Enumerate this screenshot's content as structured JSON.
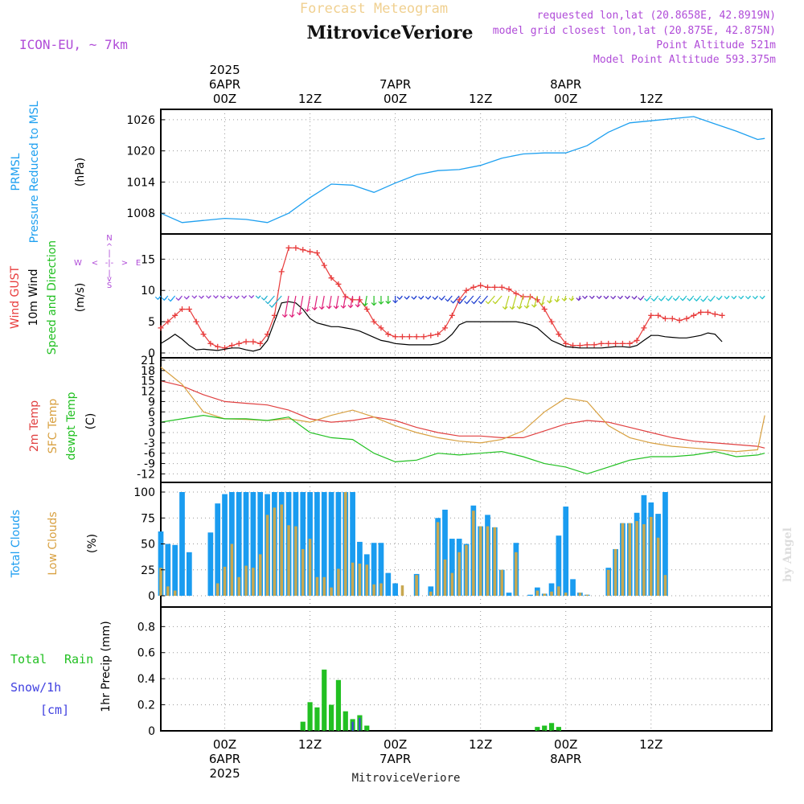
{
  "header": {
    "forecast_label": "Forecast Meteogram",
    "title": "MitroviceVeriore",
    "model": "ICON-EU, ~ 7km",
    "requested": "requested lon,lat (20.8658E, 42.8919N)",
    "closest": "model grid closest lon,lat (20.875E, 42.875N)",
    "point_altitude": "Point Altitude 521m",
    "model_altitude": "Model Point Altitude 593.375m",
    "footer_title": "MitroviceVeriore",
    "credit": "by Angel"
  },
  "colors": {
    "pressure": "#1ea0f0",
    "gust": "#e83c3c",
    "wind": "#000000",
    "arrow_green": "#22c022",
    "temp": "#e04040",
    "sfc": "#d8a040",
    "dew": "#22c022",
    "total_cloud": "#1a9cf0",
    "low_cloud": "#c8a850",
    "rain": "#22c022",
    "snow": "#4040e0",
    "purple": "#b04cd8",
    "forecast": "#f0d090"
  },
  "panel_labels": {
    "pressure": [
      "PRMSL",
      "Pressure Reduced to MSL",
      "(hPa)"
    ],
    "wind": [
      "Wind GUST",
      "10m Wind",
      "Speed and Direction",
      "(m/s)"
    ],
    "compass": {
      "n": "N",
      "s": "S",
      "w": "W",
      "e": "E"
    },
    "temp": [
      "2m Temp",
      "SFC Temp",
      "dewpt Temp",
      "(C)"
    ],
    "cloud": [
      "Total Clouds",
      "Low Clouds",
      "(%)"
    ],
    "precip": [
      "Total",
      "Rain",
      "Snow/1h",
      "[cm]",
      "1hr Precip (mm)"
    ]
  },
  "time_axis": {
    "top": [
      {
        "lines": [
          "2025",
          "6APR",
          "00Z"
        ],
        "i": 9
      },
      {
        "lines": [
          "12Z"
        ],
        "i": 21
      },
      {
        "lines": [
          "7APR",
          "00Z"
        ],
        "i": 33
      },
      {
        "lines": [
          "12Z"
        ],
        "i": 45
      },
      {
        "lines": [
          "8APR",
          "00Z"
        ],
        "i": 57
      },
      {
        "lines": [
          "12Z"
        ],
        "i": 69
      }
    ],
    "bottom": [
      {
        "lines": [
          "00Z",
          "6APR",
          "2025"
        ],
        "i": 9
      },
      {
        "lines": [
          "12Z"
        ],
        "i": 21
      },
      {
        "lines": [
          "00Z",
          "7APR"
        ],
        "i": 33
      },
      {
        "lines": [
          "12Z"
        ],
        "i": 45
      },
      {
        "lines": [
          "00Z",
          "8APR"
        ],
        "i": 57
      },
      {
        "lines": [
          "12Z"
        ],
        "i": 69
      }
    ]
  },
  "chart_data": [
    {
      "type": "line",
      "title": "PRMSL Pressure Reduced to MSL",
      "ylabel": "(hPa)",
      "ylim": [
        1004,
        1028
      ],
      "yticks": [
        1008,
        1014,
        1020,
        1026
      ],
      "x_hours": [
        -9,
        -6,
        -3,
        0,
        3,
        6,
        9,
        12,
        15,
        18,
        21,
        24,
        27,
        30,
        33,
        36,
        39,
        42,
        45,
        48,
        51,
        54,
        57,
        60,
        63,
        66,
        69,
        72,
        75,
        76
      ],
      "series": [
        {
          "name": "PRMSL",
          "values": [
            1008.0,
            1006.2,
            1006.6,
            1007.0,
            1006.8,
            1006.2,
            1008.0,
            1011.0,
            1013.6,
            1013.4,
            1012.0,
            1013.8,
            1015.4,
            1016.2,
            1016.4,
            1017.2,
            1018.6,
            1019.4,
            1019.6,
            1019.6,
            1021.0,
            1023.6,
            1025.4,
            1025.8,
            1026.2,
            1026.6,
            1025.2,
            1023.8,
            1022.2,
            1022.4
          ]
        }
      ]
    },
    {
      "type": "line",
      "title": "Wind GUST / 10m Wind Speed and Direction",
      "ylabel": "(m/s)",
      "ylim": [
        0,
        18
      ],
      "yticks": [
        0,
        5,
        10,
        15
      ],
      "x_hours": [
        -9,
        -8,
        -7,
        -6,
        -5,
        -4,
        -3,
        -2,
        -1,
        0,
        1,
        2,
        3,
        4,
        5,
        6,
        7,
        8,
        9,
        10,
        11,
        12,
        13,
        14,
        15,
        16,
        17,
        18,
        19,
        20,
        21,
        22,
        23,
        24,
        25,
        26,
        27,
        28,
        29,
        30,
        31,
        32,
        33,
        34,
        35,
        36,
        37,
        38,
        39,
        40,
        41,
        42,
        43,
        44,
        45,
        46,
        47,
        48,
        49,
        50,
        51,
        52,
        53,
        54,
        55,
        56,
        57,
        58,
        59,
        60,
        61,
        62,
        63,
        64,
        65,
        66,
        67,
        68,
        69,
        70,
        71,
        72,
        73,
        74,
        75,
        76
      ],
      "series": [
        {
          "name": "Wind GUST",
          "values": [
            4.0,
            5.0,
            6.0,
            7.0,
            7.0,
            5.0,
            3.0,
            1.5,
            1.0,
            0.8,
            1.2,
            1.5,
            1.8,
            1.8,
            1.5,
            3.0,
            6.0,
            13.0,
            16.8,
            16.8,
            16.5,
            16.2,
            16.0,
            14.0,
            12.0,
            11.0,
            9.0,
            8.5,
            8.5,
            7.0,
            5.0,
            4.0,
            3.0,
            2.6,
            2.6,
            2.6,
            2.6,
            2.6,
            2.8,
            3.0,
            4.0,
            6.0,
            8.5,
            10.0,
            10.5,
            10.8,
            10.5,
            10.5,
            10.5,
            10.2,
            9.5,
            9.0,
            9.0,
            8.5,
            7.0,
            5.0,
            3.0,
            1.5,
            1.2,
            1.2,
            1.3,
            1.3,
            1.5,
            1.5,
            1.5,
            1.5,
            1.5,
            2.0,
            4.0,
            6.0,
            6.0,
            5.5,
            5.5,
            5.2,
            5.5,
            6.0,
            6.5,
            6.5,
            6.2,
            6.0
          ]
        },
        {
          "name": "10m Wind",
          "values": [
            1.5,
            2.2,
            3.0,
            2.2,
            1.2,
            0.5,
            0.6,
            0.5,
            0.4,
            0.6,
            0.8,
            0.8,
            0.5,
            0.3,
            0.6,
            2.0,
            5.0,
            8.0,
            8.2,
            8.0,
            7.0,
            5.5,
            4.8,
            4.5,
            4.2,
            4.2,
            4.0,
            3.8,
            3.5,
            3.0,
            2.5,
            2.0,
            1.8,
            1.5,
            1.4,
            1.3,
            1.3,
            1.3,
            1.3,
            1.5,
            2.0,
            3.0,
            4.5,
            5.0,
            5.0,
            5.0,
            5.0,
            5.0,
            5.0,
            5.0,
            5.0,
            4.8,
            4.5,
            4.0,
            3.0,
            2.0,
            1.5,
            1.0,
            0.9,
            0.8,
            0.8,
            0.8,
            0.8,
            0.9,
            1.0,
            1.0,
            0.9,
            1.2,
            2.0,
            2.8,
            2.8,
            2.6,
            2.5,
            2.4,
            2.4,
            2.6,
            2.8,
            3.2,
            3.0,
            1.8
          ]
        }
      ]
    },
    {
      "type": "line",
      "title": "2m Temp / SFC Temp / dewpt Temp",
      "ylabel": "(C)",
      "ylim": [
        -14,
        21
      ],
      "yticks": [
        -12,
        -9,
        -6,
        -3,
        0,
        3,
        6,
        9,
        12,
        15,
        18,
        21
      ],
      "x_hours": [
        -9,
        -6,
        -3,
        0,
        3,
        6,
        9,
        12,
        15,
        18,
        21,
        24,
        27,
        30,
        33,
        36,
        39,
        42,
        45,
        48,
        51,
        54,
        57,
        60,
        63,
        66,
        69,
        72,
        75,
        76
      ],
      "series": [
        {
          "name": "2m Temp",
          "values": [
            15.0,
            13.5,
            11.0,
            9.0,
            8.5,
            8.0,
            6.5,
            4.0,
            3.0,
            3.5,
            4.5,
            3.5,
            1.5,
            0.0,
            -1.0,
            -1.0,
            -1.5,
            -1.5,
            0.5,
            2.5,
            3.5,
            3.0,
            1.5,
            0.0,
            -1.5,
            -2.5,
            -3.0,
            -3.5,
            -4.0,
            -4.5
          ]
        },
        {
          "name": "SFC Temp",
          "values": [
            19.0,
            14.0,
            6.0,
            4.0,
            3.8,
            3.5,
            4.0,
            3.0,
            5.0,
            6.5,
            4.5,
            2.0,
            0.0,
            -1.5,
            -2.5,
            -3.0,
            -2.0,
            0.5,
            6.0,
            10.0,
            9.0,
            2.0,
            -1.5,
            -3.0,
            -4.0,
            -4.5,
            -5.0,
            -5.5,
            -5.0,
            5.0
          ]
        },
        {
          "name": "dewpt Temp",
          "values": [
            3.0,
            4.0,
            5.0,
            4.0,
            4.0,
            3.5,
            4.5,
            0.0,
            -1.5,
            -2.0,
            -6.0,
            -8.5,
            -8.0,
            -6.0,
            -6.5,
            -6.0,
            -5.5,
            -7.0,
            -9.0,
            -10.0,
            -12.0,
            -10.0,
            -8.0,
            -7.0,
            -7.0,
            -6.5,
            -5.5,
            -7.0,
            -6.5,
            -6.0
          ]
        }
      ]
    },
    {
      "type": "bar",
      "title": "Total Clouds / Low Clouds",
      "ylabel": "(%)",
      "ylim": [
        0,
        100
      ],
      "yticks": [
        0,
        25,
        50,
        75,
        100
      ],
      "x_hours": [
        -9,
        -8,
        -7,
        -6,
        -5,
        -4,
        -3,
        -2,
        -1,
        0,
        1,
        2,
        3,
        4,
        5,
        6,
        7,
        8,
        9,
        10,
        11,
        12,
        13,
        14,
        15,
        16,
        17,
        18,
        19,
        20,
        21,
        22,
        23,
        24,
        25,
        26,
        27,
        28,
        29,
        30,
        31,
        32,
        33,
        34,
        35,
        36,
        37,
        38,
        39,
        40,
        41,
        42,
        43,
        44,
        45,
        46,
        47,
        48,
        49,
        50,
        51,
        52,
        53,
        54,
        55,
        56,
        57,
        58,
        59,
        60,
        61,
        62,
        63,
        64,
        65,
        66,
        67,
        68,
        69,
        70,
        71,
        72,
        73,
        74,
        75,
        76
      ],
      "series": [
        {
          "name": "Total Clouds",
          "values": [
            62,
            50,
            49,
            100,
            42,
            0,
            0,
            61,
            89,
            98,
            100,
            100,
            100,
            100,
            100,
            98,
            100,
            100,
            100,
            100,
            100,
            100,
            100,
            100,
            100,
            100,
            100,
            100,
            52,
            40,
            51,
            51,
            22,
            12,
            0,
            0,
            21,
            0,
            9,
            75,
            83,
            55,
            55,
            50,
            87,
            67,
            78,
            66,
            25,
            3,
            51,
            0,
            1,
            8,
            2,
            12,
            58,
            86,
            16,
            3,
            1,
            0,
            0,
            27,
            45,
            70,
            70,
            80,
            97,
            90,
            79,
            100,
            0,
            0,
            0,
            0,
            0,
            0,
            0,
            0
          ]
        },
        {
          "name": "Low Clouds",
          "values": [
            27,
            9,
            5,
            0,
            0,
            0,
            0,
            0,
            12,
            28,
            50,
            18,
            29,
            27,
            40,
            78,
            85,
            88,
            68,
            67,
            45,
            55,
            18,
            18,
            8,
            26,
            100,
            32,
            31,
            30,
            11,
            12,
            0,
            0,
            10,
            0,
            20,
            0,
            4,
            71,
            35,
            22,
            42,
            49,
            82,
            67,
            67,
            66,
            25,
            0,
            42,
            0,
            0,
            5,
            2,
            4,
            9,
            3,
            0,
            3,
            1,
            0,
            0,
            25,
            45,
            70,
            70,
            72,
            69,
            76,
            56,
            20,
            0,
            0,
            0,
            0,
            0,
            0,
            0,
            0
          ]
        }
      ]
    },
    {
      "type": "bar",
      "title": "1hr Precip (mm)",
      "ylabel": "1hr Precip (mm)",
      "ylim": [
        0,
        0.95
      ],
      "yticks": [
        0,
        0.2,
        0.4,
        0.6,
        0.8
      ],
      "series": [
        {
          "name": "Total Rain",
          "points": [
            [
              11,
              0.07
            ],
            [
              12,
              0.22
            ],
            [
              13,
              0.18
            ],
            [
              14,
              0.47
            ],
            [
              15,
              0.2
            ],
            [
              16,
              0.39
            ],
            [
              17,
              0.15
            ],
            [
              18,
              0.09
            ],
            [
              19,
              0.12
            ],
            [
              20,
              0.04
            ],
            [
              44,
              0.03
            ],
            [
              45,
              0.04
            ],
            [
              46,
              0.06
            ],
            [
              47,
              0.03
            ]
          ]
        },
        {
          "name": "Snow/1h",
          "points": [
            [
              18,
              0.07
            ],
            [
              19,
              0.1
            ]
          ]
        }
      ]
    }
  ]
}
